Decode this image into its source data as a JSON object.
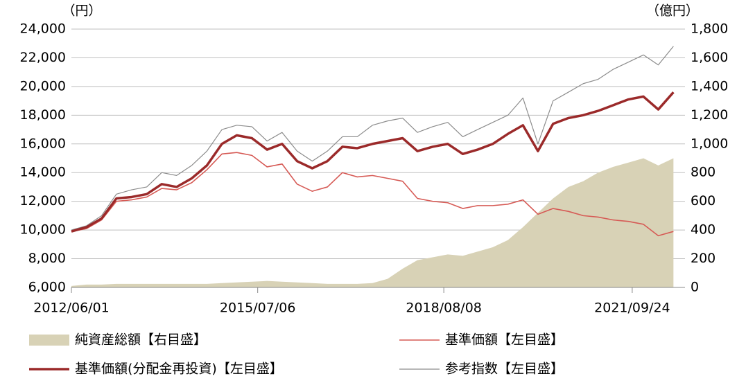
{
  "chart_data": {
    "type": "line",
    "y_unit": "（円）",
    "y2_unit": "（億円）",
    "x": [
      "2012/06/01",
      "2012/09/01",
      "2012/12/01",
      "2013/03/01",
      "2013/06/01",
      "2013/09/01",
      "2013/12/01",
      "2014/03/01",
      "2014/06/01",
      "2014/09/01",
      "2014/12/01",
      "2015/03/01",
      "2015/06/01",
      "2015/09/01",
      "2015/12/01",
      "2016/03/01",
      "2016/06/01",
      "2016/09/01",
      "2016/12/01",
      "2017/03/01",
      "2017/06/01",
      "2017/09/01",
      "2017/12/01",
      "2018/03/01",
      "2018/06/01",
      "2018/09/01",
      "2018/12/01",
      "2019/03/01",
      "2019/06/01",
      "2019/09/01",
      "2019/12/01",
      "2020/03/01",
      "2020/06/01",
      "2020/09/01",
      "2020/12/01",
      "2021/03/01",
      "2021/06/01",
      "2021/09/01",
      "2021/12/01",
      "2022/03/01",
      "2022/06/01"
    ],
    "xlim": [
      "2012/06/01",
      "2022/08/10"
    ],
    "xticks": [
      "2012/06/01",
      "2015/07/06",
      "2018/08/08",
      "2021/09/24"
    ],
    "ylim": [
      6000,
      24000
    ],
    "yticks": [
      {
        "value": 6000,
        "label": "6,000"
      },
      {
        "value": 8000,
        "label": "8,000"
      },
      {
        "value": 10000,
        "label": "10,000"
      },
      {
        "value": 12000,
        "label": "12,000"
      },
      {
        "value": 14000,
        "label": "14,000"
      },
      {
        "value": 16000,
        "label": "16,000"
      },
      {
        "value": 18000,
        "label": "18,000"
      },
      {
        "value": 20000,
        "label": "20,000"
      },
      {
        "value": 22000,
        "label": "22,000"
      },
      {
        "value": 24000,
        "label": "24,000"
      }
    ],
    "y2lim": [
      0,
      1800
    ],
    "y2ticks": [
      0,
      200,
      400,
      600,
      800,
      {
        "value": 1000,
        "label": "1,000"
      },
      {
        "value": 1200,
        "label": "1,200"
      },
      {
        "value": 1400,
        "label": "1,400"
      },
      {
        "value": 1600,
        "label": "1,600"
      },
      {
        "value": 1800,
        "label": "1,800"
      }
    ],
    "grid": true,
    "series": [
      {
        "name": "純資産総額【右目盛】",
        "style": "area",
        "axis": "y2",
        "color": "#d8d2b6",
        "values": [
          10,
          20,
          20,
          25,
          25,
          25,
          25,
          25,
          25,
          25,
          30,
          35,
          40,
          45,
          40,
          35,
          30,
          25,
          25,
          25,
          30,
          60,
          130,
          190,
          210,
          230,
          220,
          250,
          280,
          330,
          420,
          520,
          620,
          700,
          740,
          800,
          840,
          870,
          900,
          850,
          900
        ]
      },
      {
        "name": "基準価額【左目盛】",
        "style": "line",
        "color": "#d65a55",
        "width": 1.6,
        "values": [
          9900,
          10100,
          10700,
          12000,
          12100,
          12300,
          12900,
          12800,
          13300,
          14200,
          15300,
          15400,
          15200,
          14400,
          14600,
          13200,
          12700,
          13000,
          14000,
          13700,
          13800,
          13600,
          13400,
          12200,
          12000,
          11900,
          11500,
          11700,
          11700,
          11800,
          12100,
          11100,
          11500,
          11300,
          11000,
          10900,
          10700,
          10600,
          10400,
          9600,
          9900
        ]
      },
      {
        "name": "基準価額(分配金再投資)【左目盛】",
        "style": "line",
        "color": "#9b2a2a",
        "width": 3.5,
        "values": [
          9900,
          10200,
          10800,
          12200,
          12300,
          12500,
          13200,
          13000,
          13600,
          14500,
          16000,
          16600,
          16400,
          15600,
          16000,
          14800,
          14300,
          14800,
          15800,
          15700,
          16000,
          16200,
          16400,
          15500,
          15800,
          16000,
          15300,
          15600,
          16000,
          16700,
          17300,
          15500,
          17400,
          17800,
          18000,
          18300,
          18700,
          19100,
          19300,
          18400,
          19600
        ]
      },
      {
        "name": "参考指数【左目盛】",
        "style": "line",
        "color": "#8c8c8c",
        "width": 1.2,
        "values": [
          10000,
          10300,
          11000,
          12500,
          12800,
          13000,
          14000,
          13800,
          14500,
          15500,
          17000,
          17300,
          17200,
          16200,
          16800,
          15500,
          14800,
          15500,
          16500,
          16500,
          17300,
          17600,
          17800,
          16800,
          17200,
          17500,
          16500,
          17000,
          17500,
          18000,
          19200,
          16000,
          19000,
          19600,
          20200,
          20500,
          21200,
          21700,
          22200,
          21500,
          22800
        ]
      }
    ]
  }
}
